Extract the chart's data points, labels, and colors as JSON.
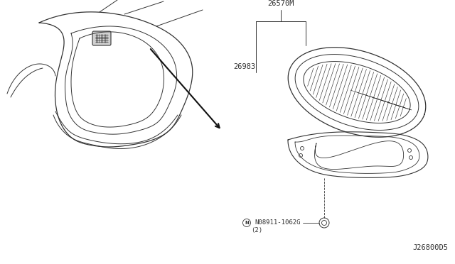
{
  "bg_color": "#ffffff",
  "line_color": "#333333",
  "label_color": "#333333",
  "diagram_id": "J26800D5",
  "part_26570M": "26570M",
  "part_26983": "26983",
  "part_bolt": "N08911-1062G",
  "part_bolt_qty": "(2)",
  "label_font_size": 7.5,
  "id_font_size": 7.5
}
